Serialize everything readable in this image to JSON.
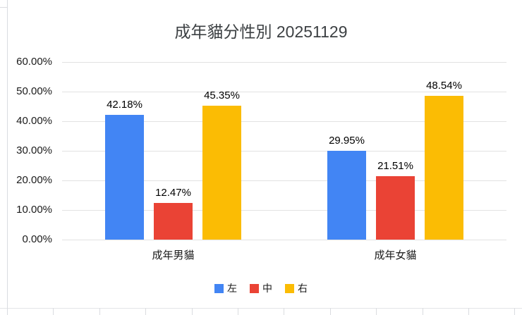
{
  "chart_data": {
    "type": "bar",
    "title": "成年貓分性別 20251129",
    "categories": [
      "成年男貓",
      "成年女貓"
    ],
    "series": [
      {
        "name": "左",
        "color": "#4285F4",
        "values": [
          42.18,
          29.95
        ]
      },
      {
        "name": "中",
        "color": "#EA4335",
        "values": [
          12.47,
          21.51
        ]
      },
      {
        "name": "右",
        "color": "#FBBC04",
        "values": [
          45.35,
          48.54
        ]
      }
    ],
    "data_labels": [
      [
        "42.18%",
        "12.47%",
        "45.35%"
      ],
      [
        "29.95%",
        "21.51%",
        "48.54%"
      ]
    ],
    "ylim": [
      0,
      60
    ],
    "ytick_step": 10,
    "ytick_labels": [
      "0.00%",
      "10.00%",
      "20.00%",
      "30.00%",
      "40.00%",
      "50.00%",
      "60.00%"
    ],
    "grid": true,
    "legend_position": "bottom"
  }
}
